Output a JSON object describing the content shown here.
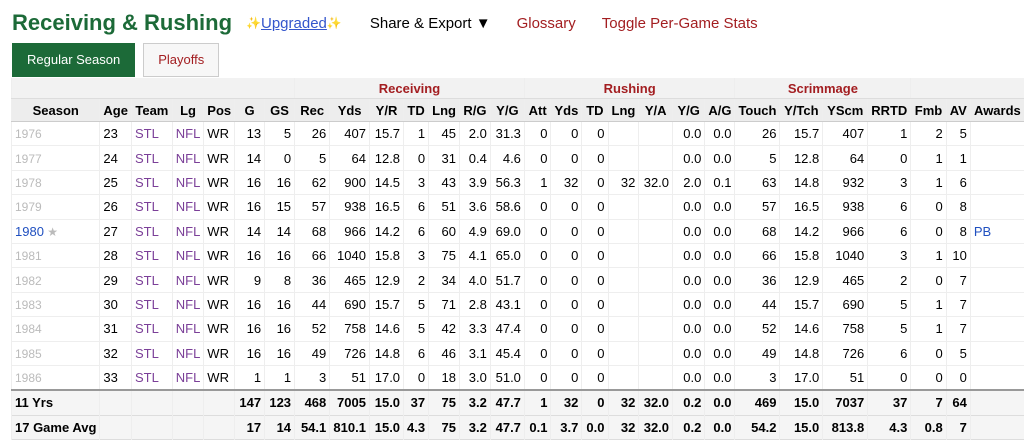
{
  "header": {
    "title": "Receiving & Rushing",
    "upgraded": "Upgraded",
    "menu": [
      "Share & Export ▼",
      "Glossary",
      "Toggle Per-Game Stats"
    ]
  },
  "tabs": [
    "Regular Season",
    "Playoffs"
  ],
  "table": {
    "groups": [
      null,
      "Receiving",
      "Rushing",
      "Scrimmage",
      null
    ],
    "columns": [
      "Season",
      "Age",
      "Team",
      "Lg",
      "Pos",
      "G",
      "GS",
      "Rec",
      "Yds",
      "Y/R",
      "TD",
      "Lng",
      "R/G",
      "Y/G",
      "Att",
      "Yds",
      "TD",
      "Lng",
      "Y/A",
      "Y/G",
      "A/G",
      "Touch",
      "Y/Tch",
      "YScm",
      "RRTD",
      "Fmb",
      "AV",
      "Awards"
    ],
    "rows": [
      [
        "1976",
        "23",
        "STL",
        "NFL",
        "WR",
        "13",
        "5",
        "26",
        "407",
        "15.7",
        "1",
        "45",
        "2.0",
        "31.3",
        "0",
        "0",
        "0",
        null,
        null,
        "0.0",
        "0.0",
        "26",
        "15.7",
        "407",
        "1",
        "2",
        "5",
        null
      ],
      [
        "1977",
        "24",
        "STL",
        "NFL",
        "WR",
        "14",
        "0",
        "5",
        "64",
        "12.8",
        "0",
        "31",
        "0.4",
        "4.6",
        "0",
        "0",
        "0",
        null,
        null,
        "0.0",
        "0.0",
        "5",
        "12.8",
        "64",
        "0",
        "1",
        "1",
        null
      ],
      [
        "1978",
        "25",
        "STL",
        "NFL",
        "WR",
        "16",
        "16",
        "62",
        "900",
        "14.5",
        "3",
        "43",
        "3.9",
        "56.3",
        "1",
        "32",
        "0",
        "32",
        "32.0",
        "2.0",
        "0.1",
        "63",
        "14.8",
        "932",
        "3",
        "1",
        "6",
        null
      ],
      [
        "1979",
        "26",
        "STL",
        "NFL",
        "WR",
        "16",
        "15",
        "57",
        "938",
        "16.5",
        "6",
        "51",
        "3.6",
        "58.6",
        "0",
        "0",
        "0",
        null,
        null,
        "0.0",
        "0.0",
        "57",
        "16.5",
        "938",
        "6",
        "0",
        "8",
        null
      ],
      [
        "1980",
        "27",
        "STL",
        "NFL",
        "WR",
        "14",
        "14",
        "68",
        "966",
        "14.2",
        "6",
        "60",
        "4.9",
        "69.0",
        "0",
        "0",
        "0",
        null,
        null,
        "0.0",
        "0.0",
        "68",
        "14.2",
        "966",
        "6",
        "0",
        "8",
        "PB"
      ],
      [
        "1981",
        "28",
        "STL",
        "NFL",
        "WR",
        "16",
        "16",
        "66",
        "1040",
        "15.8",
        "3",
        "75",
        "4.1",
        "65.0",
        "0",
        "0",
        "0",
        null,
        null,
        "0.0",
        "0.0",
        "66",
        "15.8",
        "1040",
        "3",
        "1",
        "10",
        null
      ],
      [
        "1982",
        "29",
        "STL",
        "NFL",
        "WR",
        "9",
        "8",
        "36",
        "465",
        "12.9",
        "2",
        "34",
        "4.0",
        "51.7",
        "0",
        "0",
        "0",
        null,
        null,
        "0.0",
        "0.0",
        "36",
        "12.9",
        "465",
        "2",
        "0",
        "7",
        null
      ],
      [
        "1983",
        "30",
        "STL",
        "NFL",
        "WR",
        "16",
        "16",
        "44",
        "690",
        "15.7",
        "5",
        "71",
        "2.8",
        "43.1",
        "0",
        "0",
        "0",
        null,
        null,
        "0.0",
        "0.0",
        "44",
        "15.7",
        "690",
        "5",
        "1",
        "7",
        null
      ],
      [
        "1984",
        "31",
        "STL",
        "NFL",
        "WR",
        "16",
        "16",
        "52",
        "758",
        "14.6",
        "5",
        "42",
        "3.3",
        "47.4",
        "0",
        "0",
        "0",
        null,
        null,
        "0.0",
        "0.0",
        "52",
        "14.6",
        "758",
        "5",
        "1",
        "7",
        null
      ],
      [
        "1985",
        "32",
        "STL",
        "NFL",
        "WR",
        "16",
        "16",
        "49",
        "726",
        "14.8",
        "6",
        "46",
        "3.1",
        "45.4",
        "0",
        "0",
        "0",
        null,
        null,
        "0.0",
        "0.0",
        "49",
        "14.8",
        "726",
        "6",
        "0",
        "5",
        null
      ],
      [
        "1986",
        "33",
        "STL",
        "NFL",
        "WR",
        "1",
        "1",
        "3",
        "51",
        "17.0",
        "0",
        "18",
        "3.0",
        "51.0",
        "0",
        "0",
        "0",
        null,
        null,
        "0.0",
        "0.0",
        "3",
        "17.0",
        "51",
        "0",
        "0",
        "0",
        null
      ]
    ],
    "footer": [
      [
        "11 Yrs",
        null,
        null,
        null,
        null,
        "147",
        "123",
        "468",
        "7005",
        "15.0",
        "37",
        "75",
        "3.2",
        "47.7",
        "1",
        "32",
        "0",
        "32",
        "32.0",
        "0.2",
        "0.0",
        "469",
        "15.0",
        "7037",
        "37",
        "7",
        "64",
        null
      ],
      [
        "17 Game Avg",
        null,
        null,
        null,
        null,
        "17",
        "14",
        "54.1",
        "810.1",
        "15.0",
        "4.3",
        "75",
        "3.2",
        "47.7",
        "0.1",
        "3.7",
        "0.0",
        "32",
        "32.0",
        "0.2",
        "0.0",
        "54.2",
        "15.0",
        "813.8",
        "4.3",
        "0.8",
        "7",
        null
      ]
    ]
  }
}
